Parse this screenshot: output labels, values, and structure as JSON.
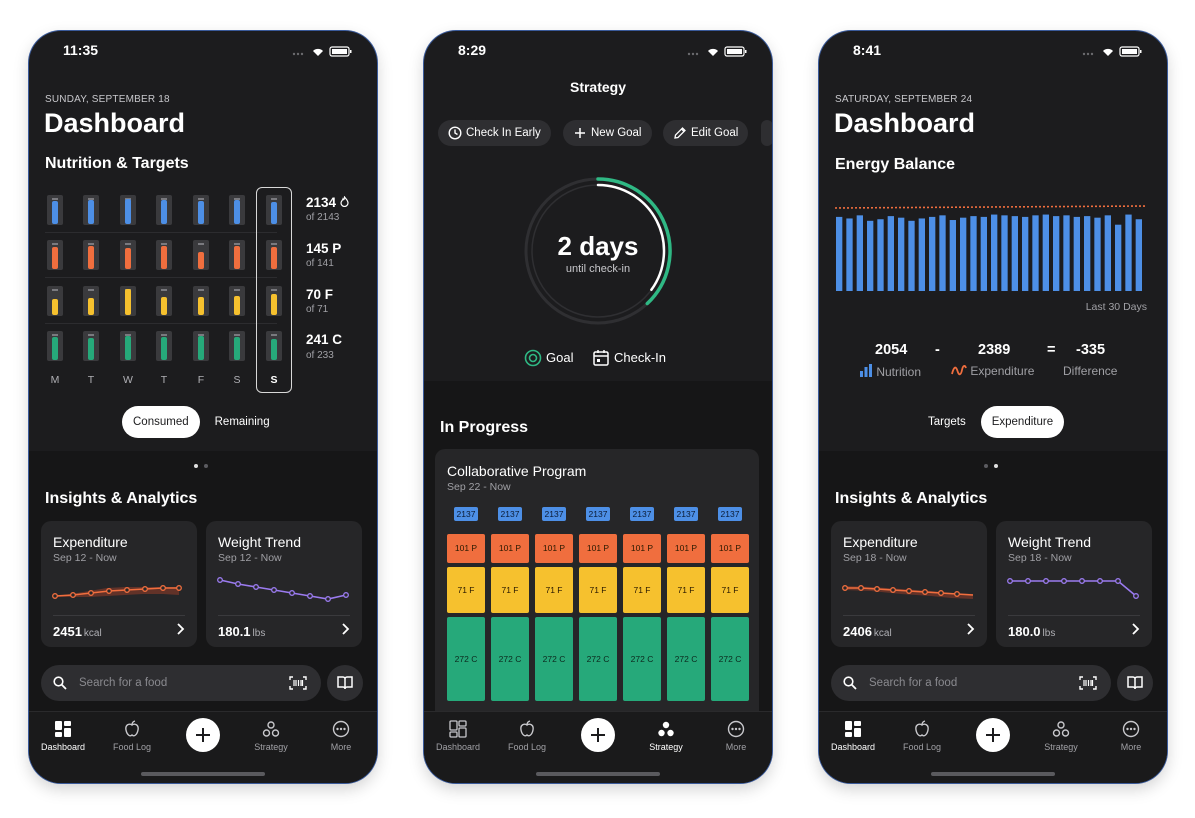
{
  "phone1": {
    "time": "11:35",
    "date": "SUNDAY, SEPTEMBER 18",
    "title": "Dashboard",
    "section": "Nutrition & Targets",
    "days": [
      "M",
      "T",
      "W",
      "T",
      "F",
      "S",
      "S"
    ],
    "rows": [
      {
        "value": "2134",
        "of": "of 2143",
        "color": "#4d8fe6",
        "levels": [
          0.9,
          0.92,
          0.95,
          0.93,
          0.9,
          0.94,
          0.85
        ]
      },
      {
        "value": "145 P",
        "of": "of 141",
        "color": "#f06e3e",
        "levels": [
          0.85,
          0.88,
          0.8,
          0.9,
          0.65,
          0.9,
          0.86
        ]
      },
      {
        "value": "70 F",
        "of": "of 71",
        "color": "#f6c12e",
        "levels": [
          0.6,
          0.65,
          1.0,
          0.7,
          0.68,
          0.72,
          0.8
        ]
      },
      {
        "value": "241 C",
        "of": "of 233",
        "color": "#26a97a",
        "levels": [
          0.9,
          0.85,
          0.92,
          0.88,
          0.93,
          0.9,
          0.8
        ]
      }
    ],
    "toggle": {
      "consumed": "Consumed",
      "remaining": "Remaining"
    },
    "insights": "Insights & Analytics",
    "cards": [
      {
        "title": "Expenditure",
        "sub": "Sep 12 - Now",
        "value": "2451",
        "unit": "kcal"
      },
      {
        "title": "Weight Trend",
        "sub": "Sep 12 - Now",
        "value": "180.1",
        "unit": "lbs"
      }
    ]
  },
  "phone2": {
    "time": "8:29",
    "title": "Strategy",
    "chips": [
      "Check In Early",
      "New Goal",
      "Edit Goal"
    ],
    "ring_value": "2 days",
    "ring_sub": "until check-in",
    "ring_progress": 0.38,
    "legend": {
      "goal": "Goal",
      "checkin": "Check-In"
    },
    "in_progress": "In Progress",
    "program": {
      "title": "Collaborative Program",
      "sub": "Sep 22 - Now",
      "cal": "2137",
      "protein": "101 P",
      "fat": "71 F",
      "carbs": "272 C"
    }
  },
  "phone3": {
    "time": "8:41",
    "date": "SATURDAY, SEPTEMBER 24",
    "title": "Dashboard",
    "section": "Energy Balance",
    "bars": [
      0.95,
      0.93,
      0.97,
      0.9,
      0.92,
      0.96,
      0.94,
      0.9,
      0.93,
      0.95,
      0.97,
      0.91,
      0.94,
      0.96,
      0.95,
      0.98,
      0.97,
      0.96,
      0.95,
      0.97,
      0.98,
      0.96,
      0.97,
      0.95,
      0.96,
      0.94,
      0.97,
      0.85,
      0.98,
      0.92
    ],
    "last": "Last 30 Days",
    "nutrition": "2054",
    "expenditure": "2389",
    "difference": "-335",
    "minus": "-",
    "equals": "=",
    "labels": {
      "nutrition": "Nutrition",
      "expenditure": "Expenditure",
      "difference": "Difference"
    },
    "toggle": {
      "targets": "Targets",
      "expenditure": "Expenditure"
    },
    "insights": "Insights & Analytics",
    "cards": [
      {
        "title": "Expenditure",
        "sub": "Sep 18 - Now",
        "value": "2406",
        "unit": "kcal"
      },
      {
        "title": "Weight Trend",
        "sub": "Sep 18 - Now",
        "value": "180.0",
        "unit": "lbs"
      }
    ]
  },
  "common": {
    "search_placeholder": "Search for a food",
    "tabs": {
      "dashboard": "Dashboard",
      "foodlog": "Food Log",
      "strategy": "Strategy",
      "more": "More"
    }
  }
}
